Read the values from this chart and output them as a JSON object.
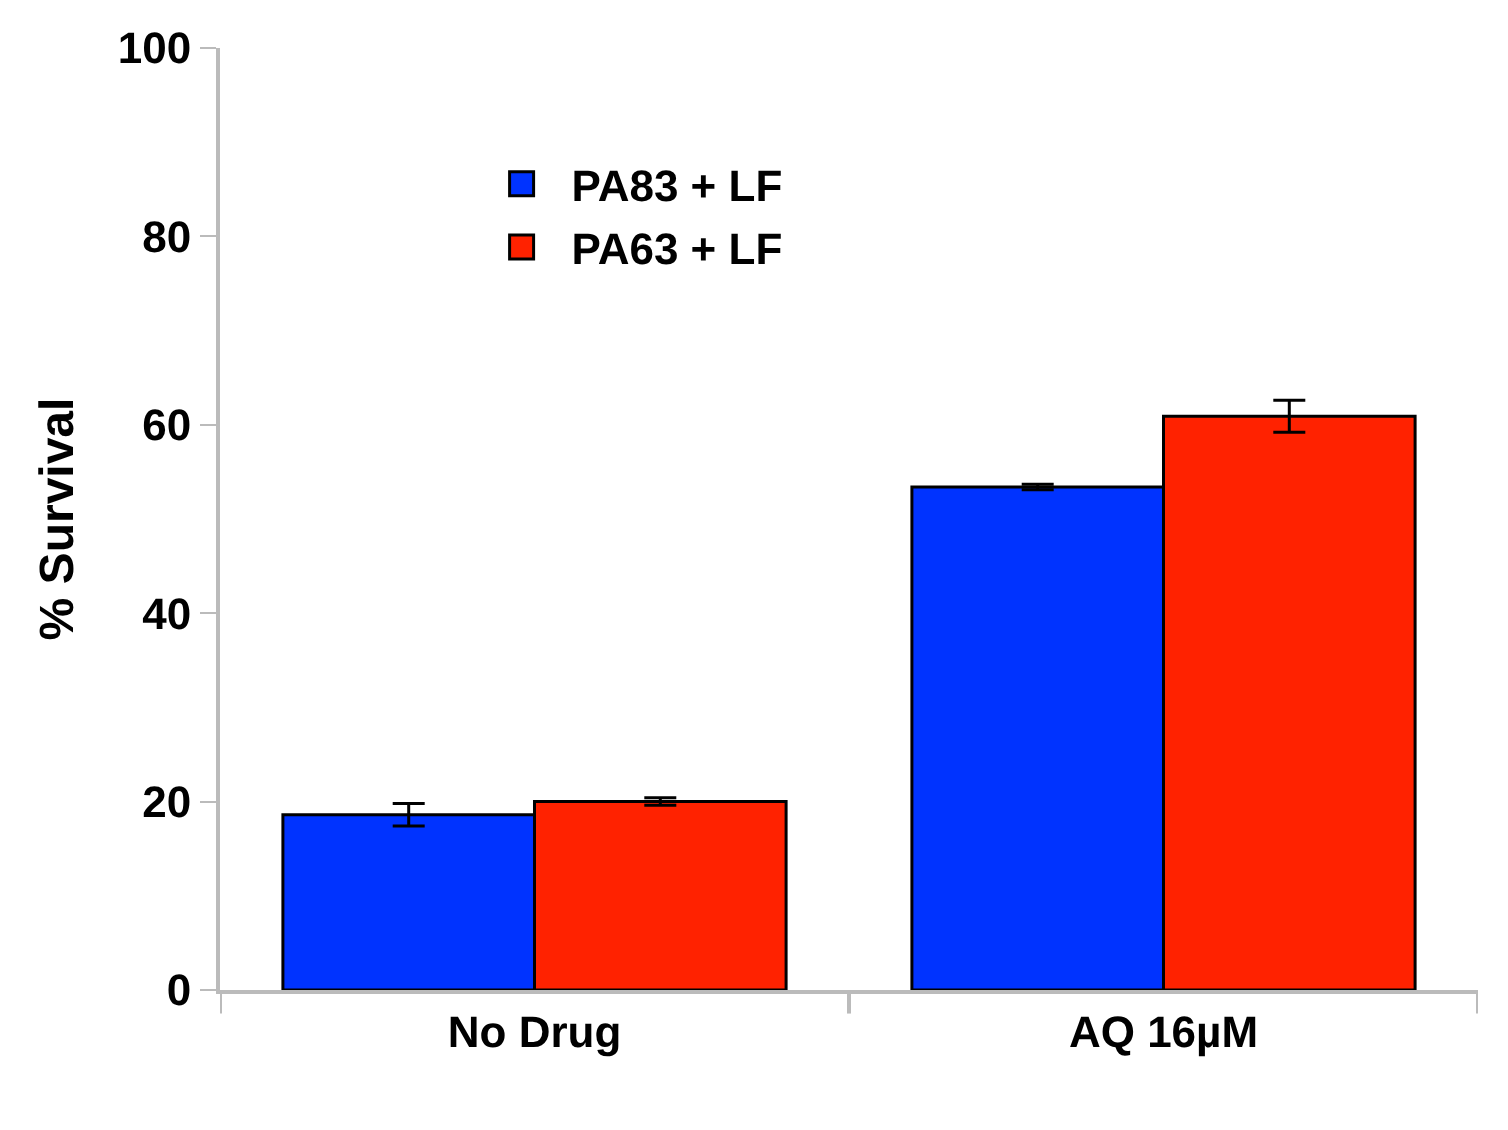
{
  "chart_data": {
    "type": "bar",
    "ylabel": "% Survival",
    "categories": [
      "No Drug",
      "AQ 16µM"
    ],
    "series": [
      {
        "name": "PA83 + LF",
        "color": "#0033ff",
        "values": [
          18.6,
          53.4
        ],
        "errors": [
          1.2,
          0.3
        ]
      },
      {
        "name": "PA63 + LF",
        "color": "#ff2200",
        "values": [
          20.0,
          60.9
        ],
        "errors": [
          0.4,
          1.7
        ]
      }
    ],
    "ylim": [
      0,
      100
    ],
    "yticks": [
      0,
      20,
      40,
      60,
      80,
      100
    ],
    "legend": "top left"
  }
}
